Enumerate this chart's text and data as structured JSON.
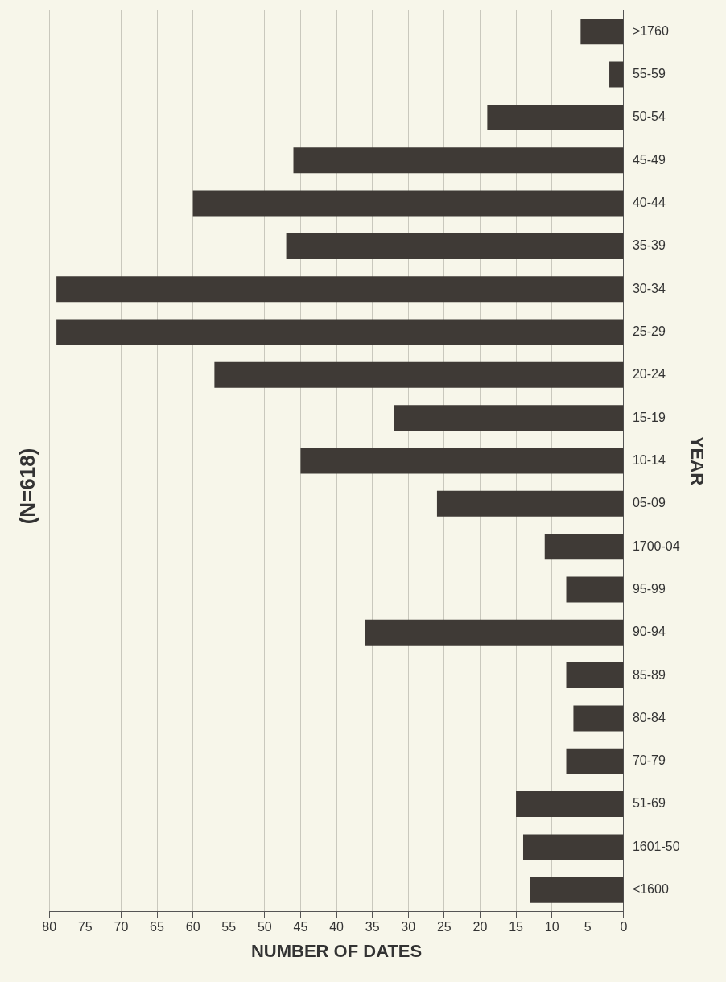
{
  "chart_data": {
    "type": "bar",
    "orientation": "horizontal",
    "title": "(N=618)",
    "xlabel": "NUMBER OF DATES",
    "ylabel": "YEAR",
    "categories": [
      ">1760",
      "55-59",
      "50-54",
      "45-49",
      "40-44",
      "35-39",
      "30-34",
      "25-29",
      "20-24",
      "15-19",
      "10-14",
      "05-09",
      "1700-04",
      "95-99",
      "90-94",
      "85-89",
      "80-84",
      "70-79",
      "51-69",
      "1601-50",
      "<1600"
    ],
    "values": [
      6,
      2,
      19,
      46,
      60,
      47,
      79,
      79,
      57,
      32,
      45,
      26,
      11,
      8,
      36,
      8,
      7,
      8,
      15,
      14,
      13
    ],
    "color": "#3f3a36",
    "xlim": [
      80,
      0
    ],
    "xticks": [
      80,
      75,
      70,
      65,
      60,
      55,
      50,
      45,
      40,
      35,
      30,
      25,
      20,
      15,
      10,
      5,
      0
    ],
    "grid": "x"
  }
}
